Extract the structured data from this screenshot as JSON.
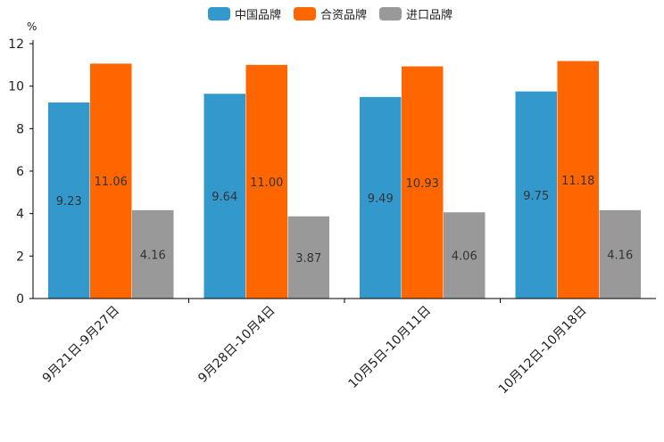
{
  "chart_data": {
    "type": "bar",
    "unit": "%",
    "categories": [
      "9月21日-9月27日",
      "9月28日-10月4日",
      "10月5日-10月11日",
      "10月12日-10月18日"
    ],
    "series": [
      {
        "name": "中国品牌",
        "color": "#3399CC",
        "values": [
          9.23,
          9.64,
          9.49,
          9.75
        ]
      },
      {
        "name": "合资品牌",
        "color": "#FF6600",
        "values": [
          11.06,
          11.0,
          10.93,
          11.18
        ]
      },
      {
        "name": "进口品牌",
        "color": "#999999",
        "values": [
          4.16,
          3.87,
          4.06,
          4.16
        ]
      }
    ],
    "ylim": [
      0,
      12
    ],
    "yticks": [
      0,
      2,
      4,
      6,
      8,
      10,
      12
    ],
    "legend_position": "top-center",
    "grid": false
  }
}
